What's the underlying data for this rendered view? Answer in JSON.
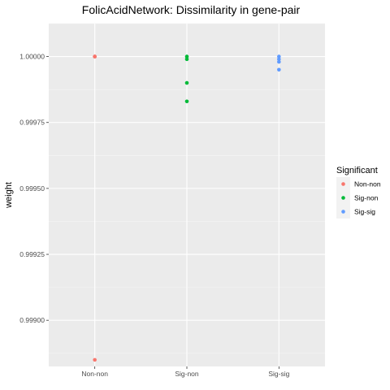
{
  "chart_data": {
    "type": "scatter",
    "title": "FolicAcidNetwork: Dissimilarity in gene-pair",
    "xlabel": "",
    "ylabel": "weight",
    "categories": [
      "Non-non",
      "Sig-non",
      "Sig-sig"
    ],
    "ylim": [
      0.998825,
      1.000125
    ],
    "y_ticks": [
      0.999,
      0.99925,
      0.9995,
      0.99975,
      1.0
    ],
    "y_tick_labels": [
      "0.99900",
      "0.99925",
      "0.99950",
      "0.99975",
      "1.00000"
    ],
    "grid": true,
    "legend": {
      "title": "Significant",
      "position": "right"
    },
    "series": [
      {
        "name": "Non-non",
        "color": "#F8766D",
        "points": [
          {
            "x": "Non-non",
            "y": 1.0
          },
          {
            "x": "Non-non",
            "y": 1.0
          },
          {
            "x": "Non-non",
            "y": 1.0
          },
          {
            "x": "Non-non",
            "y": 0.99885
          }
        ]
      },
      {
        "name": "Sig-non",
        "color": "#00BA38",
        "points": [
          {
            "x": "Sig-non",
            "y": 1.0
          },
          {
            "x": "Sig-non",
            "y": 0.99999
          },
          {
            "x": "Sig-non",
            "y": 0.9999
          },
          {
            "x": "Sig-non",
            "y": 0.99983
          }
        ]
      },
      {
        "name": "Sig-sig",
        "color": "#619CFF",
        "points": [
          {
            "x": "Sig-sig",
            "y": 1.0
          },
          {
            "x": "Sig-sig",
            "y": 0.99999
          },
          {
            "x": "Sig-sig",
            "y": 0.99998
          },
          {
            "x": "Sig-sig",
            "y": 0.99995
          }
        ]
      }
    ]
  }
}
